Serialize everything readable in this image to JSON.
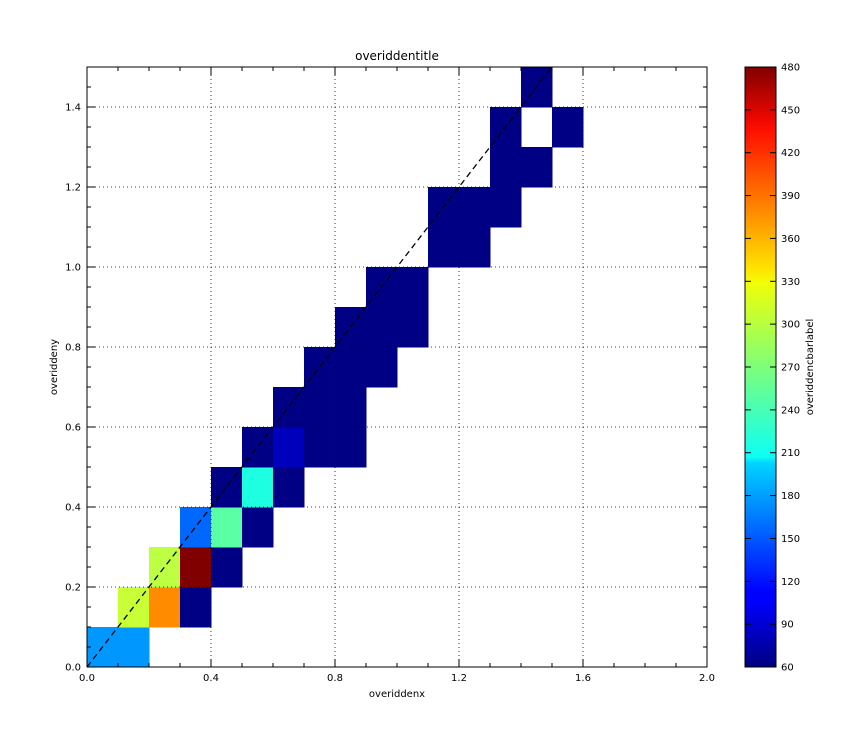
{
  "chart_data": {
    "type": "heatmap",
    "title": "overiddentitle",
    "xlabel": "overiddenx",
    "ylabel": "overiddeny",
    "colorbar_label": "overiddencbarlabel",
    "colormap": "jet",
    "xlim": [
      0.0,
      2.0
    ],
    "ylim": [
      0.0,
      1.5
    ],
    "xticks": [
      "0.0",
      "0.4",
      "0.8",
      "1.2",
      "1.6",
      "2.0"
    ],
    "yticks": [
      "0.0",
      "0.2",
      "0.4",
      "0.6",
      "0.8",
      "1.0",
      "1.2",
      "1.4"
    ],
    "colorbar_range": [
      60,
      480
    ],
    "colorbar_ticks": [
      "60",
      "90",
      "120",
      "150",
      "180",
      "210",
      "240",
      "270",
      "300",
      "330",
      "360",
      "390",
      "420",
      "450",
      "480"
    ],
    "grid": true,
    "reference_line": {
      "style": "dashed",
      "color": "#000000",
      "from": [
        0.0,
        0.0
      ],
      "to": [
        1.5,
        1.5
      ]
    },
    "cells": [
      {
        "x0": 0.0,
        "x1": 0.1,
        "y0": 0.0,
        "y1": 0.1,
        "value": 175
      },
      {
        "x0": 0.1,
        "x1": 0.2,
        "y0": 0.0,
        "y1": 0.1,
        "value": 175
      },
      {
        "x0": 0.1,
        "x1": 0.2,
        "y0": 0.1,
        "y1": 0.2,
        "value": 300
      },
      {
        "x0": 0.2,
        "x1": 0.3,
        "y0": 0.1,
        "y1": 0.2,
        "value": 370
      },
      {
        "x0": 0.3,
        "x1": 0.4,
        "y0": 0.1,
        "y1": 0.2,
        "value": 62
      },
      {
        "x0": 0.2,
        "x1": 0.3,
        "y0": 0.2,
        "y1": 0.3,
        "value": 295
      },
      {
        "x0": 0.3,
        "x1": 0.4,
        "y0": 0.2,
        "y1": 0.3,
        "value": 480
      },
      {
        "x0": 0.4,
        "x1": 0.5,
        "y0": 0.2,
        "y1": 0.3,
        "value": 62
      },
      {
        "x0": 0.3,
        "x1": 0.4,
        "y0": 0.3,
        "y1": 0.4,
        "value": 155
      },
      {
        "x0": 0.4,
        "x1": 0.5,
        "y0": 0.3,
        "y1": 0.4,
        "value": 255
      },
      {
        "x0": 0.5,
        "x1": 0.6,
        "y0": 0.3,
        "y1": 0.4,
        "value": 62
      },
      {
        "x0": 0.4,
        "x1": 0.5,
        "y0": 0.4,
        "y1": 0.5,
        "value": 62
      },
      {
        "x0": 0.5,
        "x1": 0.6,
        "y0": 0.4,
        "y1": 0.5,
        "value": 230
      },
      {
        "x0": 0.6,
        "x1": 0.7,
        "y0": 0.4,
        "y1": 0.5,
        "value": 62
      },
      {
        "x0": 0.5,
        "x1": 0.6,
        "y0": 0.5,
        "y1": 0.6,
        "value": 62
      },
      {
        "x0": 0.6,
        "x1": 0.7,
        "y0": 0.5,
        "y1": 0.6,
        "value": 85
      },
      {
        "x0": 0.7,
        "x1": 0.8,
        "y0": 0.5,
        "y1": 0.6,
        "value": 62
      },
      {
        "x0": 0.8,
        "x1": 0.9,
        "y0": 0.5,
        "y1": 0.6,
        "value": 62
      },
      {
        "x0": 0.6,
        "x1": 0.7,
        "y0": 0.6,
        "y1": 0.7,
        "value": 62
      },
      {
        "x0": 0.7,
        "x1": 0.8,
        "y0": 0.6,
        "y1": 0.7,
        "value": 62
      },
      {
        "x0": 0.8,
        "x1": 0.9,
        "y0": 0.6,
        "y1": 0.7,
        "value": 62
      },
      {
        "x0": 0.7,
        "x1": 0.8,
        "y0": 0.7,
        "y1": 0.8,
        "value": 62
      },
      {
        "x0": 0.8,
        "x1": 0.9,
        "y0": 0.7,
        "y1": 0.8,
        "value": 62
      },
      {
        "x0": 0.9,
        "x1": 1.0,
        "y0": 0.7,
        "y1": 0.8,
        "value": 62
      },
      {
        "x0": 0.8,
        "x1": 0.9,
        "y0": 0.8,
        "y1": 0.9,
        "value": 62
      },
      {
        "x0": 0.9,
        "x1": 1.0,
        "y0": 0.8,
        "y1": 0.9,
        "value": 62
      },
      {
        "x0": 1.0,
        "x1": 1.1,
        "y0": 0.8,
        "y1": 0.9,
        "value": 62
      },
      {
        "x0": 0.9,
        "x1": 1.0,
        "y0": 0.9,
        "y1": 1.0,
        "value": 62
      },
      {
        "x0": 1.0,
        "x1": 1.1,
        "y0": 0.9,
        "y1": 1.0,
        "value": 62
      },
      {
        "x0": 1.1,
        "x1": 1.2,
        "y0": 1.0,
        "y1": 1.1,
        "value": 62
      },
      {
        "x0": 1.2,
        "x1": 1.3,
        "y0": 1.0,
        "y1": 1.1,
        "value": 62
      },
      {
        "x0": 1.1,
        "x1": 1.2,
        "y0": 1.1,
        "y1": 1.2,
        "value": 62
      },
      {
        "x0": 1.2,
        "x1": 1.3,
        "y0": 1.1,
        "y1": 1.2,
        "value": 62
      },
      {
        "x0": 1.3,
        "x1": 1.4,
        "y0": 1.1,
        "y1": 1.2,
        "value": 62
      },
      {
        "x0": 1.3,
        "x1": 1.4,
        "y0": 1.2,
        "y1": 1.3,
        "value": 62
      },
      {
        "x0": 1.4,
        "x1": 1.5,
        "y0": 1.2,
        "y1": 1.3,
        "value": 62
      },
      {
        "x0": 1.3,
        "x1": 1.4,
        "y0": 1.3,
        "y1": 1.4,
        "value": 62
      },
      {
        "x0": 1.5,
        "x1": 1.6,
        "y0": 1.3,
        "y1": 1.4,
        "value": 62
      },
      {
        "x0": 1.4,
        "x1": 1.5,
        "y0": 1.4,
        "y1": 1.5,
        "value": 62
      }
    ]
  }
}
